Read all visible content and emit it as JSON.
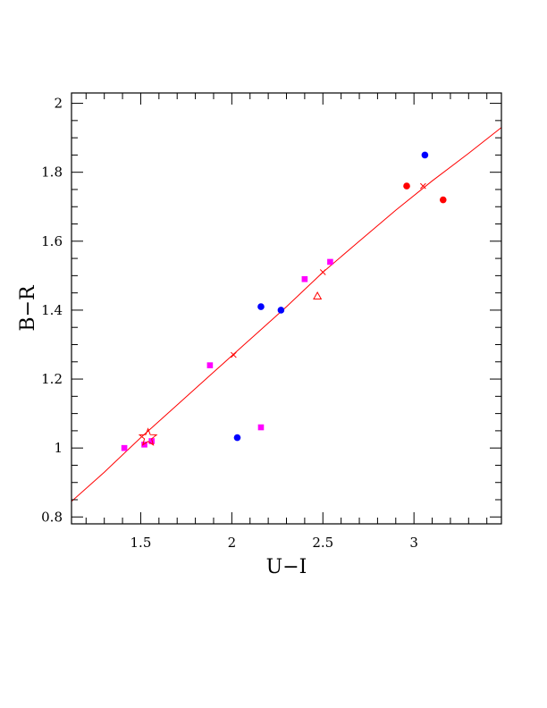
{
  "chart_data": {
    "type": "scatter",
    "title": "",
    "xlabel": "U−I",
    "ylabel": "B−R",
    "xlim": [
      1.12,
      3.48
    ],
    "ylim": [
      0.78,
      2.03
    ],
    "x_ticks": [
      {
        "value": 1.5,
        "label": "1.5"
      },
      {
        "value": 2.0,
        "label": "2"
      },
      {
        "value": 2.5,
        "label": "2.5"
      },
      {
        "value": 3.0,
        "label": "3"
      }
    ],
    "y_ticks": [
      {
        "value": 0.8,
        "label": "0.8"
      },
      {
        "value": 1.0,
        "label": "1"
      },
      {
        "value": 1.2,
        "label": "1.2"
      },
      {
        "value": 1.4,
        "label": "1.4"
      },
      {
        "value": 1.6,
        "label": "1.6"
      },
      {
        "value": 1.8,
        "label": "1.8"
      },
      {
        "value": 2.0,
        "label": "2"
      }
    ],
    "grid": false,
    "legend": "none",
    "colors": {
      "red": "#ff0000",
      "blue": "#0000ff",
      "magenta": "#ff00ff",
      "axis": "#000000"
    },
    "series": [
      {
        "marker": "square",
        "color": "#ff00ff",
        "x": [
          1.41,
          1.52,
          1.56,
          1.88,
          2.16,
          2.4,
          2.54
        ],
        "y": [
          1.0,
          1.01,
          1.02,
          1.24,
          1.06,
          1.49,
          1.54
        ]
      },
      {
        "marker": "circle",
        "color": "#0000ff",
        "x": [
          2.03,
          2.16,
          2.27,
          3.06
        ],
        "y": [
          1.03,
          1.41,
          1.4,
          1.85
        ]
      },
      {
        "marker": "circle",
        "color": "#ff0000",
        "x": [
          2.96,
          3.16
        ],
        "y": [
          1.76,
          1.72
        ]
      },
      {
        "marker": "triangle-open",
        "color": "#ff0000",
        "x": [
          2.47
        ],
        "y": [
          1.44
        ]
      },
      {
        "marker": "star-open",
        "color": "#ff0000",
        "x": [
          1.54
        ],
        "y": [
          1.03
        ]
      },
      {
        "marker": "cross",
        "color": "#ff0000",
        "x": [
          2.01,
          2.5,
          3.05
        ],
        "y": [
          1.27,
          1.51,
          1.76
        ]
      },
      {
        "type": "line",
        "color": "#ff0000",
        "x": [
          1.12,
          1.3,
          1.5,
          1.7,
          1.9,
          2.1,
          2.3,
          2.5,
          2.7,
          2.9,
          3.1,
          3.3,
          3.48
        ],
        "y": [
          0.845,
          0.93,
          1.03,
          1.125,
          1.22,
          1.315,
          1.41,
          1.51,
          1.6,
          1.69,
          1.775,
          1.855,
          1.93
        ]
      }
    ]
  }
}
